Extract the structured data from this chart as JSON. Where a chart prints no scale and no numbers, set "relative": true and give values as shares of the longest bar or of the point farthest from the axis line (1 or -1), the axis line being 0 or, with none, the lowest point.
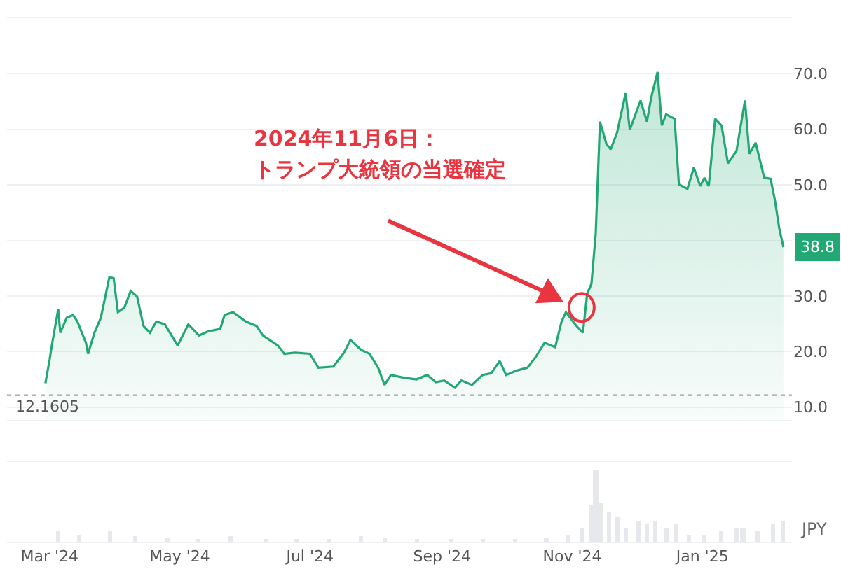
{
  "chart_data": [
    {
      "type": "area",
      "tick_labels": "y",
      "grid": "y",
      "xlim": [
        "2024-02-10",
        "2025-02-12"
      ],
      "ylim": [
        7.7,
        80
      ],
      "yticks": [
        {
          "value": 10,
          "label": "10.0"
        },
        {
          "value": 20,
          "label": "20.0"
        },
        {
          "value": 30,
          "label": "30.0"
        },
        {
          "value": 40,
          "label": null
        },
        {
          "value": 50,
          "label": "50.0"
        },
        {
          "value": 60,
          "label": "60.0"
        },
        {
          "value": 70,
          "label": "70.0"
        }
      ],
      "x": [
        "2024-02-28",
        "2024-03-01",
        "2024-03-02",
        "2024-03-05",
        "2024-03-06",
        "2024-03-09",
        "2024-03-12",
        "2024-03-14",
        "2024-03-18",
        "2024-03-19",
        "2024-03-22",
        "2024-03-25",
        "2024-03-29",
        "2024-03-31",
        "2024-04-02",
        "2024-04-05",
        "2024-04-08",
        "2024-04-11",
        "2024-04-14",
        "2024-04-17",
        "2024-04-20",
        "2024-04-24",
        "2024-04-30",
        "2024-05-05",
        "2024-05-10",
        "2024-05-14",
        "2024-05-20",
        "2024-05-22",
        "2024-05-26",
        "2024-06-01",
        "2024-06-06",
        "2024-06-09",
        "2024-06-16",
        "2024-06-19",
        "2024-06-24",
        "2024-07-01",
        "2024-07-05",
        "2024-07-12",
        "2024-07-17",
        "2024-07-20",
        "2024-07-25",
        "2024-07-29",
        "2024-08-02",
        "2024-08-05",
        "2024-08-08",
        "2024-08-14",
        "2024-08-20",
        "2024-08-25",
        "2024-08-29",
        "2024-09-02",
        "2024-09-07",
        "2024-09-10",
        "2024-09-15",
        "2024-09-20",
        "2024-09-24",
        "2024-09-28",
        "2024-10-01",
        "2024-10-06",
        "2024-10-11",
        "2024-10-15",
        "2024-10-19",
        "2024-10-24",
        "2024-10-27",
        "2024-10-29",
        "2024-11-03",
        "2024-11-06",
        "2024-11-08",
        "2024-11-10",
        "2024-11-12",
        "2024-11-14",
        "2024-11-17",
        "2024-11-19",
        "2024-11-22",
        "2024-11-26",
        "2024-11-28",
        "2024-12-03",
        "2024-12-06",
        "2024-12-08",
        "2024-12-11",
        "2024-12-13",
        "2024-12-15",
        "2024-12-19",
        "2024-12-21",
        "2024-12-25",
        "2024-12-28",
        "2024-12-31",
        "2025-01-02",
        "2025-01-04",
        "2025-01-07",
        "2025-01-10",
        "2025-01-13",
        "2025-01-17",
        "2025-01-19",
        "2025-01-21",
        "2025-01-23",
        "2025-01-26",
        "2025-01-30",
        "2025-02-02",
        "2025-02-04",
        "2025-02-06",
        "2025-02-08"
      ],
      "series": [
        {
          "color": "#21a874",
          "values": [
            14.3,
            18.6,
            21.1,
            27.6,
            23.4,
            26.1,
            26.6,
            25.4,
            21.6,
            19.6,
            23.4,
            26.1,
            33.4,
            33.2,
            27.1,
            27.9,
            30.9,
            29.9,
            24.6,
            23.4,
            25.4,
            24.9,
            21.1,
            24.9,
            22.9,
            23.6,
            24.1,
            26.6,
            27.1,
            25.4,
            24.6,
            22.9,
            21.1,
            19.6,
            19.8,
            19.6,
            17.1,
            17.3,
            19.8,
            22.1,
            20.3,
            19.6,
            17.1,
            14.0,
            15.8,
            15.3,
            15.0,
            15.8,
            14.5,
            14.8,
            13.5,
            14.8,
            14.0,
            15.8,
            16.1,
            18.3,
            15.8,
            16.6,
            17.1,
            19.1,
            21.6,
            20.8,
            25.4,
            27.1,
            24.6,
            23.4,
            30.4,
            32.2,
            41.2,
            61.4,
            57.4,
            56.4,
            59.4,
            66.5,
            59.9,
            65.2,
            61.4,
            65.7,
            70.3,
            60.7,
            62.7,
            61.9,
            50.1,
            49.3,
            53.1,
            49.8,
            51.3,
            49.8,
            61.9,
            60.7,
            53.9,
            56.1,
            60.7,
            65.2,
            55.6,
            57.6,
            51.3,
            51.1,
            47.3,
            42.3,
            38.8
          ],
          "value_labels": [
            null,
            null,
            null,
            null,
            null,
            null,
            null,
            null,
            null,
            null,
            null,
            null,
            null,
            null,
            null,
            null,
            null,
            null,
            null,
            null,
            null,
            null,
            null,
            null,
            null,
            null,
            null,
            null,
            null,
            null,
            null,
            null,
            null,
            null,
            null,
            null,
            null,
            null,
            null,
            null,
            null,
            null,
            null,
            null,
            null,
            null,
            null,
            null,
            null,
            null,
            null,
            null,
            null,
            null,
            null,
            null,
            null,
            null,
            null,
            null,
            null,
            null,
            null,
            null,
            null,
            null,
            null,
            null,
            null,
            null,
            null,
            null,
            null,
            null,
            null,
            null,
            null,
            null,
            null,
            null,
            null,
            null,
            null,
            null,
            null,
            null,
            null,
            null,
            null,
            null,
            null,
            null,
            null,
            null,
            null,
            null,
            null,
            null,
            null,
            null,
            "38.8"
          ]
        }
      ],
      "ref_lines": [
        {
          "axis": "y",
          "value": 12.1605,
          "label": "12.1605",
          "color": "#9aa0a8",
          "line_style": "dotted"
        }
      ],
      "annotations": [
        "2024年11月6日：",
        "トランプ大統領の当選確定"
      ]
    },
    {
      "type": "bar",
      "relative": true,
      "tick_labels": "x",
      "color": "#e6e8eb",
      "xlim": [
        "2024-02-10",
        "2025-02-12"
      ],
      "xticks": [
        {
          "value": "2024-03-01",
          "label": "Mar '24"
        },
        {
          "value": "2024-05-01",
          "label": "May '24"
        },
        {
          "value": "2024-07-01",
          "label": "Jul '24"
        },
        {
          "value": "2024-09-01",
          "label": "Sep '24"
        },
        {
          "value": "2024-11-01",
          "label": "Nov '24"
        },
        {
          "value": "2025-01-01",
          "label": "Jan '25"
        }
      ],
      "x": [
        "2024-03-05",
        "2024-03-15",
        "2024-03-29",
        "2024-04-10",
        "2024-04-25",
        "2024-05-10",
        "2024-05-25",
        "2024-06-10",
        "2024-06-25",
        "2024-07-10",
        "2024-07-25",
        "2024-08-05",
        "2024-08-20",
        "2024-09-05",
        "2024-09-20",
        "2024-10-05",
        "2024-10-20",
        "2024-10-30",
        "2024-11-06",
        "2024-11-10",
        "2024-11-12",
        "2024-11-14",
        "2024-11-18",
        "2024-11-22",
        "2024-11-26",
        "2024-12-02",
        "2024-12-06",
        "2024-12-10",
        "2024-12-15",
        "2024-12-20",
        "2024-12-26",
        "2025-01-02",
        "2025-01-10",
        "2025-01-17",
        "2025-01-20",
        "2025-01-27",
        "2025-02-03",
        "2025-02-08"
      ],
      "values": [
        0.15,
        0.1,
        0.15,
        0.08,
        0.05,
        0.04,
        0.08,
        0.03,
        0.03,
        0.03,
        0.08,
        0.05,
        0.03,
        0.03,
        0.03,
        0.03,
        0.05,
        0.1,
        0.2,
        0.5,
        1,
        0.55,
        0.4,
        0.35,
        0.2,
        0.3,
        0.25,
        0.3,
        0.2,
        0.25,
        0.1,
        0.1,
        0.15,
        0.2,
        0.2,
        0.15,
        0.25,
        0.3
      ],
      "annotations": [
        "JPY"
      ]
    }
  ]
}
